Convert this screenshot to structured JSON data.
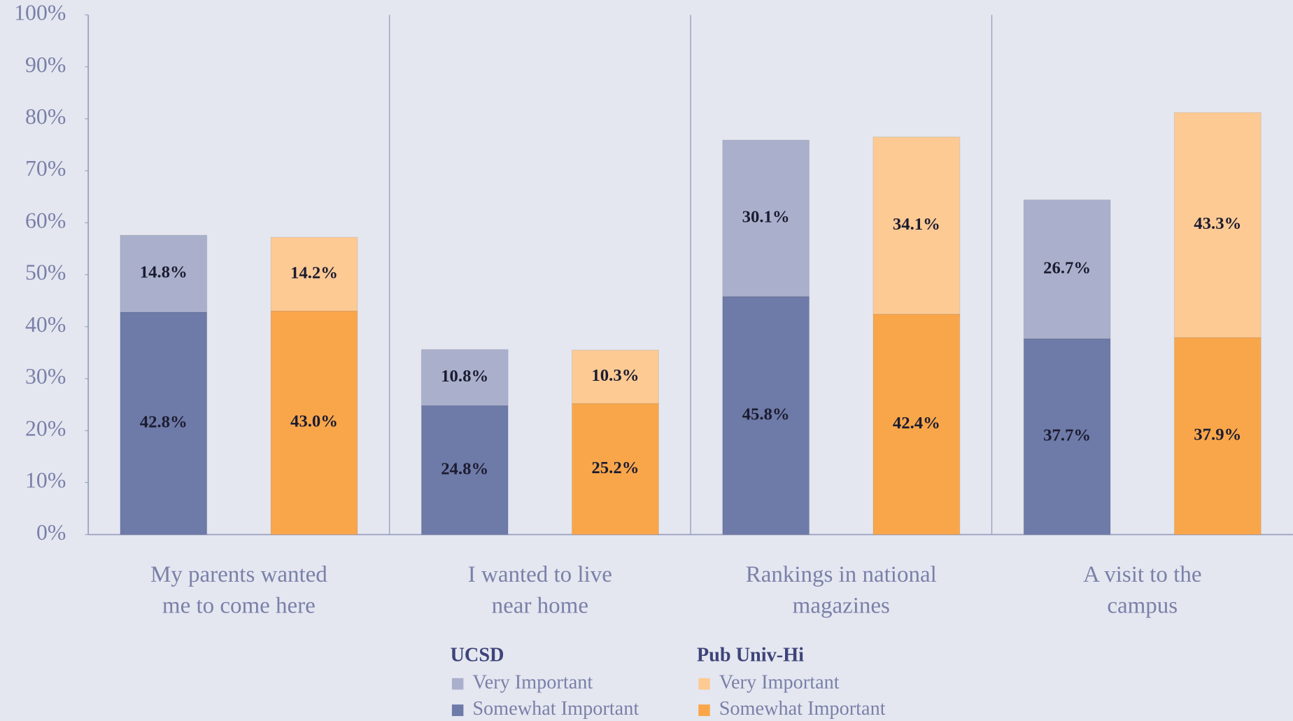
{
  "chart_data": {
    "type": "stacked_bar",
    "categories": [
      "My parents wanted\nme to come here",
      "I wanted to live\nnear home",
      "Rankings in national\nmagazines",
      "A visit to the\ncampus"
    ],
    "ylim": [
      0,
      100
    ],
    "yticks": [
      {
        "value": 0,
        "label": "0%"
      },
      {
        "value": 10,
        "label": "10%"
      },
      {
        "value": 20,
        "label": "20%"
      },
      {
        "value": 30,
        "label": "30%"
      },
      {
        "value": 40,
        "label": "40%"
      },
      {
        "value": 50,
        "label": "50%"
      },
      {
        "value": 60,
        "label": "60%"
      },
      {
        "value": 70,
        "label": "70%"
      },
      {
        "value": 80,
        "label": "80%"
      },
      {
        "value": 90,
        "label": "90%"
      },
      {
        "value": 100,
        "label": "100%"
      }
    ],
    "groups": [
      {
        "name": "UCSD",
        "series": [
          {
            "name": "Somewhat Important",
            "color": "#6e7aa8",
            "values": [
              42.8,
              24.8,
              45.8,
              37.7
            ],
            "value_labels": [
              "42.8%",
              "24.8%",
              "45.8%",
              "37.7%"
            ]
          },
          {
            "name": "Very Important",
            "color": "#aab0cc",
            "values": [
              14.8,
              10.8,
              30.1,
              26.7
            ],
            "value_labels": [
              "14.8%",
              "10.8%",
              "30.1%",
              "26.7%"
            ]
          }
        ]
      },
      {
        "name": "Pub Univ-Hi",
        "series": [
          {
            "name": "Somewhat Important",
            "color": "#f9a64a",
            "values": [
              43.0,
              25.2,
              42.4,
              37.9
            ],
            "value_labels": [
              "43.0%",
              "25.2%",
              "42.4%",
              "37.9%"
            ]
          },
          {
            "name": "Very Important",
            "color": "#fdca94",
            "values": [
              14.2,
              10.3,
              34.1,
              43.3
            ],
            "value_labels": [
              "14.2%",
              "10.3%",
              "34.1%",
              "43.3%"
            ]
          }
        ]
      }
    ]
  }
}
